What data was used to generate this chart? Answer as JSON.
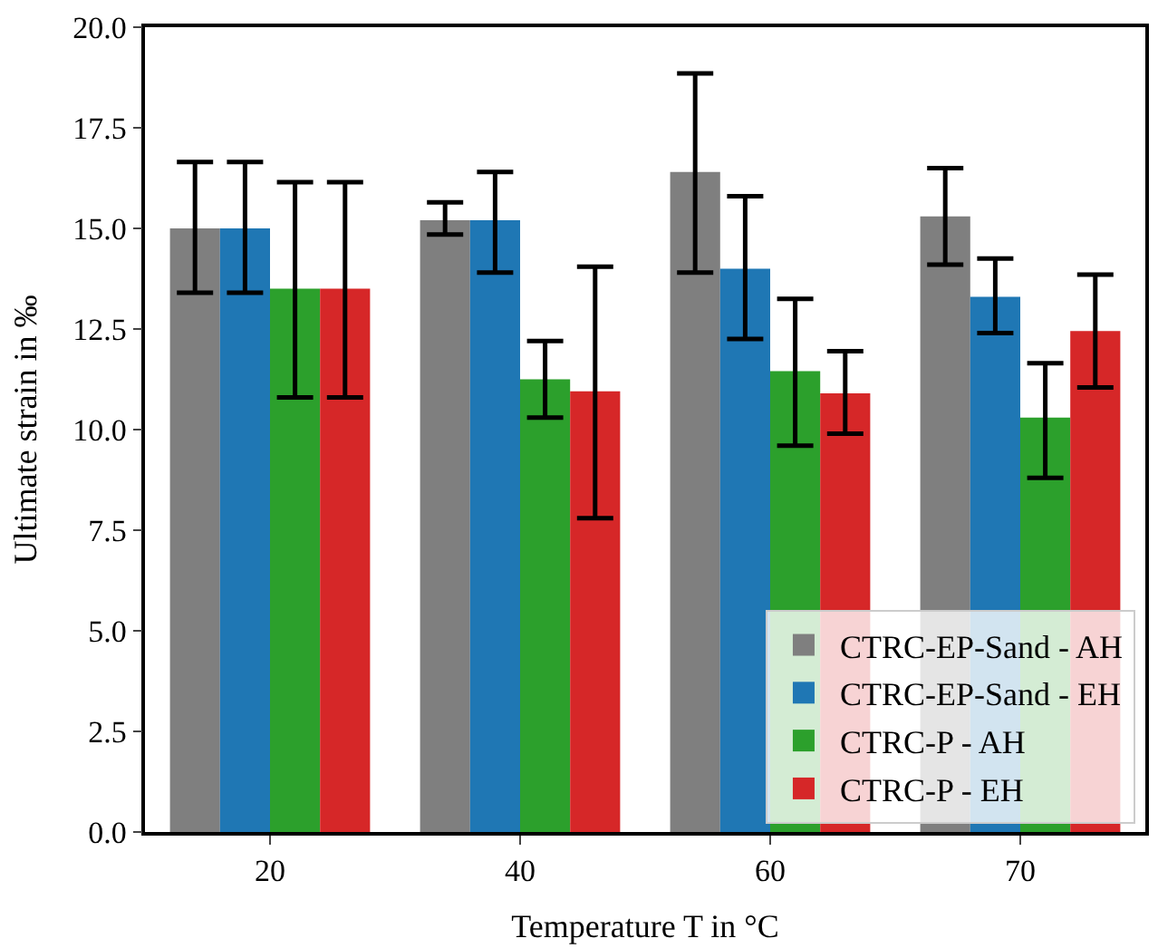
{
  "chart_data": {
    "type": "bar",
    "xlabel": "Temperature T in °C",
    "ylabel": "Ultimate strain in ‰",
    "categories": [
      "20",
      "40",
      "60",
      "70"
    ],
    "series": [
      {
        "name": "CTRC-EP-Sand - AH",
        "color": "#7f7f7f",
        "values": [
          15.0,
          15.2,
          16.4,
          15.3
        ],
        "errors": [
          [
            13.4,
            16.65
          ],
          [
            14.85,
            15.65
          ],
          [
            13.9,
            18.85
          ],
          [
            14.1,
            16.5
          ]
        ]
      },
      {
        "name": "CTRC-EP-Sand - EH",
        "color": "#1f77b4",
        "values": [
          15.0,
          15.2,
          14.0,
          13.3
        ],
        "errors": [
          [
            13.4,
            16.65
          ],
          [
            13.9,
            16.4
          ],
          [
            12.25,
            15.8
          ],
          [
            12.4,
            14.25
          ]
        ]
      },
      {
        "name": "CTRC-P - AH",
        "color": "#2ca02c",
        "values": [
          13.5,
          11.25,
          11.45,
          10.3
        ],
        "errors": [
          [
            10.8,
            16.15
          ],
          [
            10.3,
            12.2
          ],
          [
            9.6,
            13.25
          ],
          [
            8.8,
            11.65
          ]
        ]
      },
      {
        "name": "CTRC-P - EH",
        "color": "#d62728",
        "values": [
          13.5,
          10.95,
          10.9,
          12.45
        ],
        "errors": [
          [
            10.8,
            16.15
          ],
          [
            7.8,
            14.05
          ],
          [
            9.9,
            11.95
          ],
          [
            11.05,
            13.85
          ]
        ]
      }
    ],
    "ylim": [
      0,
      20
    ],
    "yticks": [
      {
        "value": 0,
        "label": "0.0"
      },
      {
        "value": 2.5,
        "label": "2.5"
      },
      {
        "value": 5,
        "label": "5.0"
      },
      {
        "value": 7.5,
        "label": "7.5"
      },
      {
        "value": 10,
        "label": "10.0"
      },
      {
        "value": 12.5,
        "label": "12.5"
      },
      {
        "value": 15,
        "label": "15.0"
      },
      {
        "value": 17.5,
        "label": "17.5"
      },
      {
        "value": 20,
        "label": "20.0"
      }
    ],
    "legend": "bottom right"
  }
}
